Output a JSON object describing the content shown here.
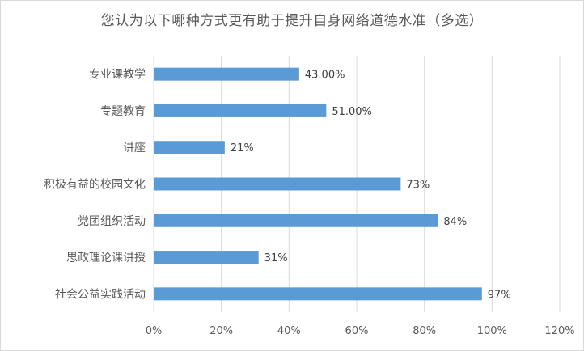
{
  "chart_data": {
    "type": "bar",
    "orientation": "horizontal",
    "title": "您认为以下哪种方式更有助于提升自身网络道德水准（多选）",
    "categories": [
      "专业课教学",
      "专题教育",
      "讲座",
      "积极有益的校园文化",
      "党团组织活动",
      "思政理论课讲授",
      "社会公益实践活动"
    ],
    "values": [
      43,
      51,
      21,
      73,
      84,
      31,
      97
    ],
    "data_labels": [
      "43.00%",
      "51.00%",
      "21%",
      "73%",
      "84%",
      "31%",
      "97%"
    ],
    "x_ticks": [
      "0%",
      "20%",
      "40%",
      "60%",
      "80%",
      "100%",
      "120%"
    ],
    "xlim": [
      0,
      120
    ],
    "grid": "vertical",
    "legend": "none",
    "bar_color": "#5b9bd5",
    "grid_color": "#d9d9d9"
  }
}
